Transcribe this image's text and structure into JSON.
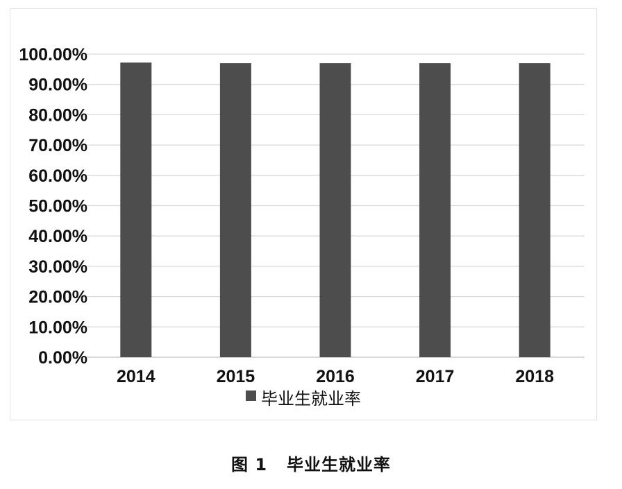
{
  "chart_data": {
    "type": "bar",
    "categories": [
      "2014",
      "2015",
      "2016",
      "2017",
      "2018"
    ],
    "series": [
      {
        "name": "毕业生就业率",
        "values": [
          97.2,
          97.0,
          97.0,
          97.0,
          97.0
        ]
      }
    ],
    "ylim": [
      0,
      100
    ],
    "yticks": [
      "0.00%",
      "10.00%",
      "20.00%",
      "30.00%",
      "40.00%",
      "50.00%",
      "60.00%",
      "70.00%",
      "80.00%",
      "90.00%",
      "100.00%"
    ],
    "grid": true,
    "legend_position": "bottom",
    "bar_color": "#4d4d4d",
    "grid_color": "#d9d9d9"
  },
  "caption": {
    "figure_number": "图 1",
    "text": "毕业生就业率"
  }
}
